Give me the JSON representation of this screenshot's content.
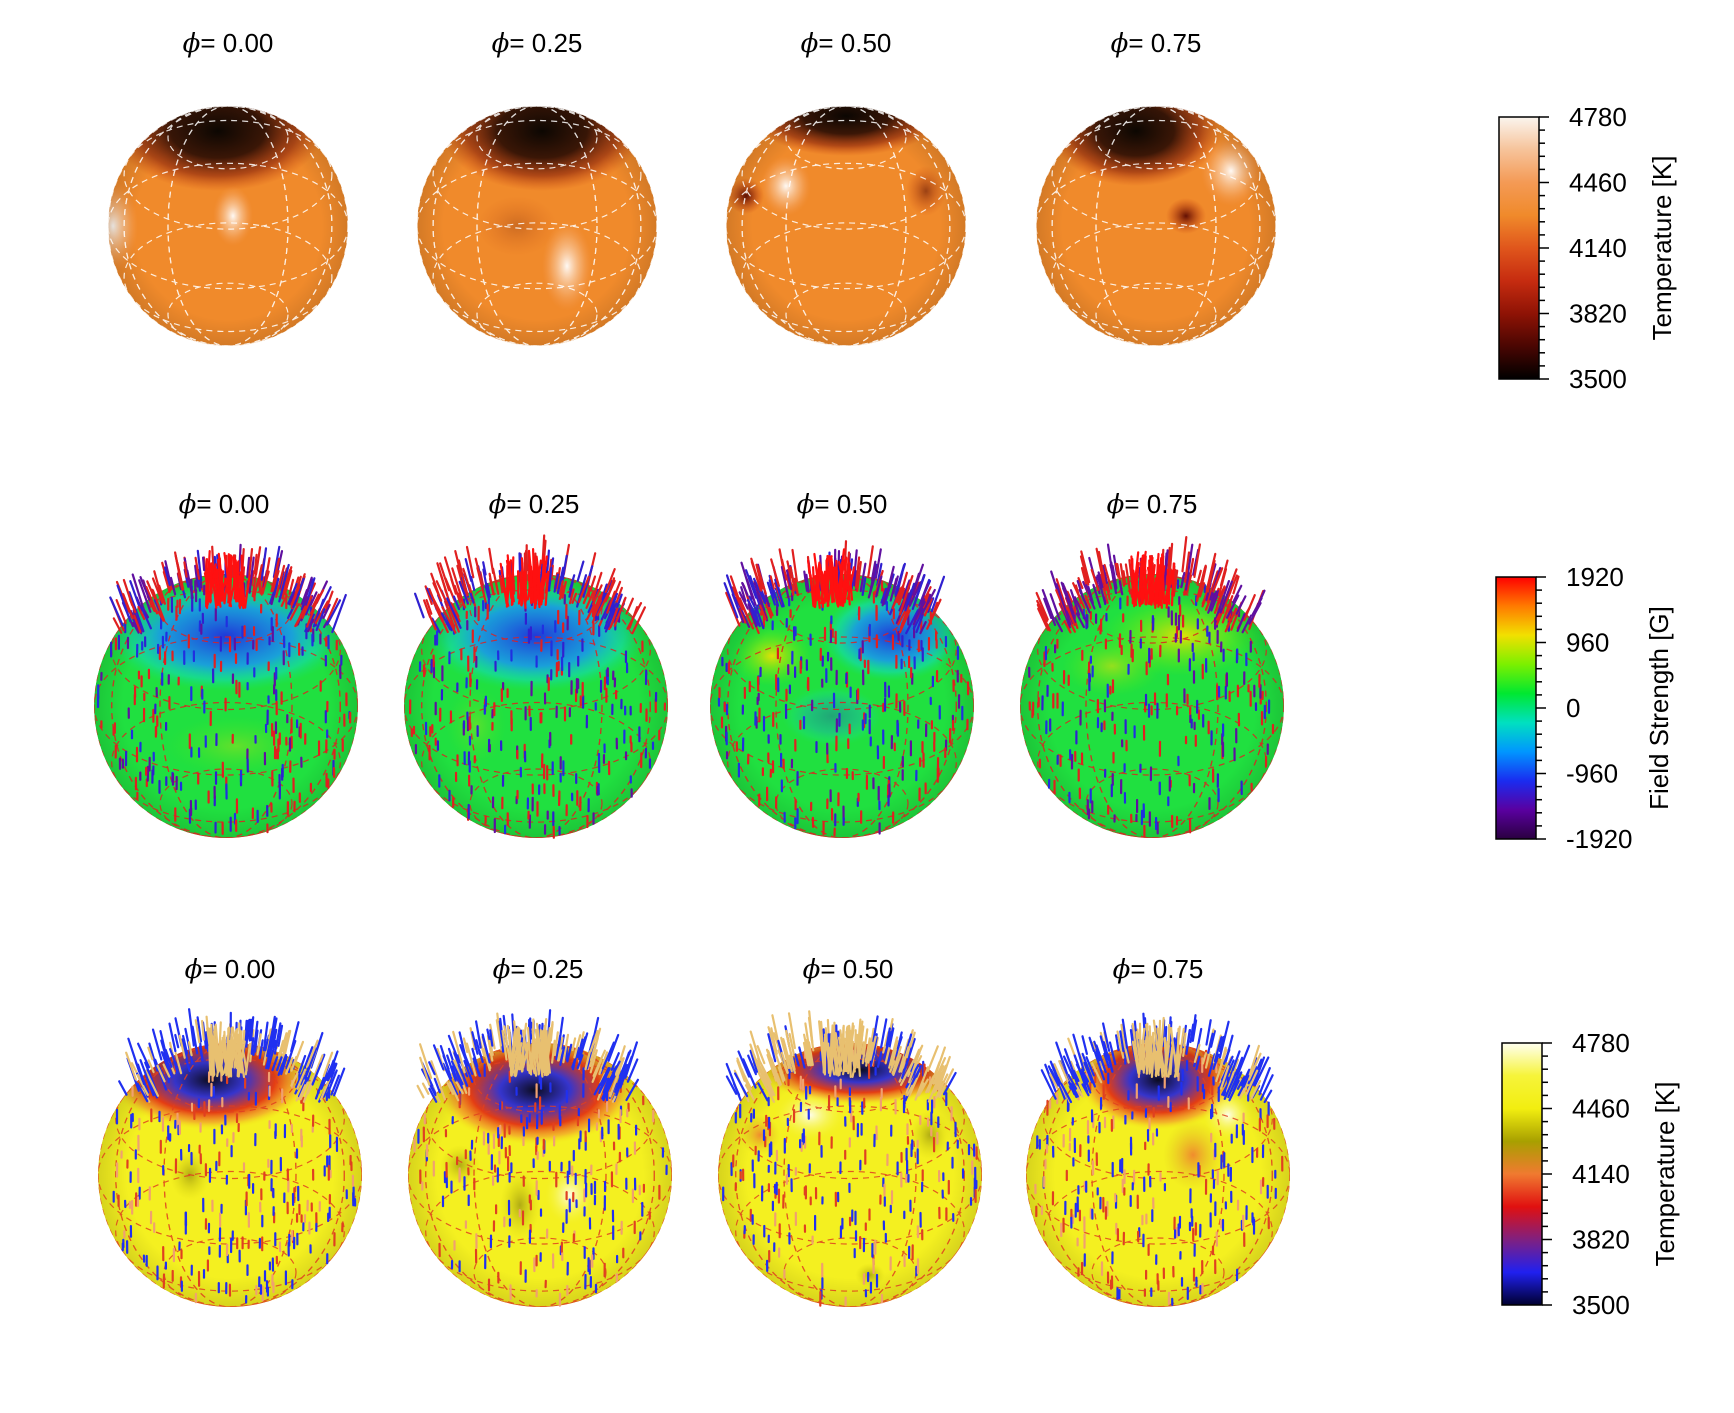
{
  "rows": [
    {
      "name": "temperature",
      "phase_prefix": "= ",
      "phases": [
        "0.00",
        "0.25",
        "0.50",
        "0.75"
      ],
      "colorbar": {
        "title": "Temperature [K]",
        "ticks": [
          "4780",
          "4460",
          "4140",
          "3820",
          "3500"
        ],
        "colors": [
          "#fbf5ee",
          "#f6c39a",
          "#f49a55",
          "#f08a2b",
          "#e0561c",
          "#c62c10",
          "#8f1305",
          "#4a0602",
          "#000000"
        ]
      }
    },
    {
      "name": "magnetic-field",
      "phase_prefix": "= ",
      "phases": [
        "0.00",
        "0.25",
        "0.50",
        "0.75"
      ],
      "colorbar": {
        "title": "Field Strength [G]",
        "ticks": [
          "1920",
          "960",
          "0",
          "-960",
          "-1920"
        ],
        "colors": [
          "#ff0000",
          "#ff7a00",
          "#f2e000",
          "#7cf000",
          "#00e830",
          "#00e0c0",
          "#0096ff",
          "#1a2cf0",
          "#5a00a0",
          "#2a0040"
        ]
      }
    },
    {
      "name": "combined",
      "phase_prefix": "= ",
      "phases": [
        "0.00",
        "0.25",
        "0.50",
        "0.75"
      ],
      "colorbar": {
        "title": "Temperature [K]",
        "ticks": [
          "4780",
          "4460",
          "4140",
          "3820",
          "3500"
        ],
        "colors": [
          "#fffff0",
          "#f6f43a",
          "#f2ee10",
          "#a8a000",
          "#f07a30",
          "#e01010",
          "#802080",
          "#2020f0",
          "#000030"
        ]
      }
    }
  ]
}
